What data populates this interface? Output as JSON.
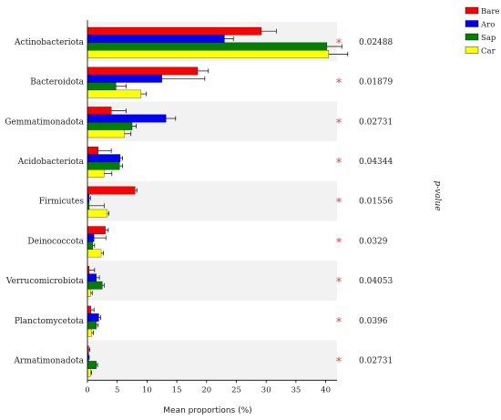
{
  "chart_data": {
    "type": "bar",
    "orientation": "horizontal",
    "xlabel": "Mean proportions (%)",
    "p_label": "p-value",
    "xlim": [
      0,
      41
    ],
    "xticks": [
      0,
      5,
      10,
      15,
      20,
      25,
      30,
      35,
      40
    ],
    "categories": [
      "Actinobacteriota",
      "Bacteroidota",
      "Gemmatimonadota",
      "Acidobacteriota",
      "Firmicutes",
      "Deinococcota",
      "Verrucomicrobiota",
      "Planctomycetota",
      "Armatimonadota"
    ],
    "p_values": [
      "0.02488",
      "0.01879",
      "0.02731",
      "0.04344",
      "0.01556",
      "0.0329",
      "0.04053",
      "0.0396",
      "0.02731"
    ],
    "significance_marker": "*",
    "legend_position": "top-right",
    "series": [
      {
        "name": "Bare",
        "color": "#ff0000",
        "values": [
          29.2,
          18.5,
          4.0,
          1.8,
          8.0,
          3.0,
          0.3,
          0.6,
          0.2
        ],
        "errors": [
          2.5,
          1.8,
          2.5,
          2.2,
          0.3,
          0.5,
          0.9,
          0.5,
          0.2
        ]
      },
      {
        "name": "Aro",
        "color": "#0000ff",
        "values": [
          23.0,
          12.5,
          13.2,
          5.5,
          0.3,
          1.1,
          1.5,
          1.9,
          0.2
        ],
        "errors": [
          1.5,
          7.2,
          1.6,
          0.4,
          0.2,
          2.0,
          0.5,
          0.3,
          0.1
        ]
      },
      {
        "name": "Sap",
        "color": "#008000",
        "values": [
          40.2,
          4.8,
          7.5,
          5.4,
          0.3,
          0.9,
          2.5,
          1.5,
          1.5
        ],
        "errors": [
          2.5,
          1.7,
          0.7,
          0.5,
          2.5,
          0.3,
          0.3,
          0.3,
          0.2
        ]
      },
      {
        "name": "Car",
        "color": "#ffff00",
        "values": [
          40.5,
          9.0,
          6.2,
          2.8,
          3.3,
          2.3,
          0.5,
          0.7,
          0.5
        ],
        "errors": [
          3.2,
          0.9,
          1.1,
          1.3,
          0.3,
          0.4,
          0.3,
          0.3,
          0.2
        ]
      }
    ]
  }
}
